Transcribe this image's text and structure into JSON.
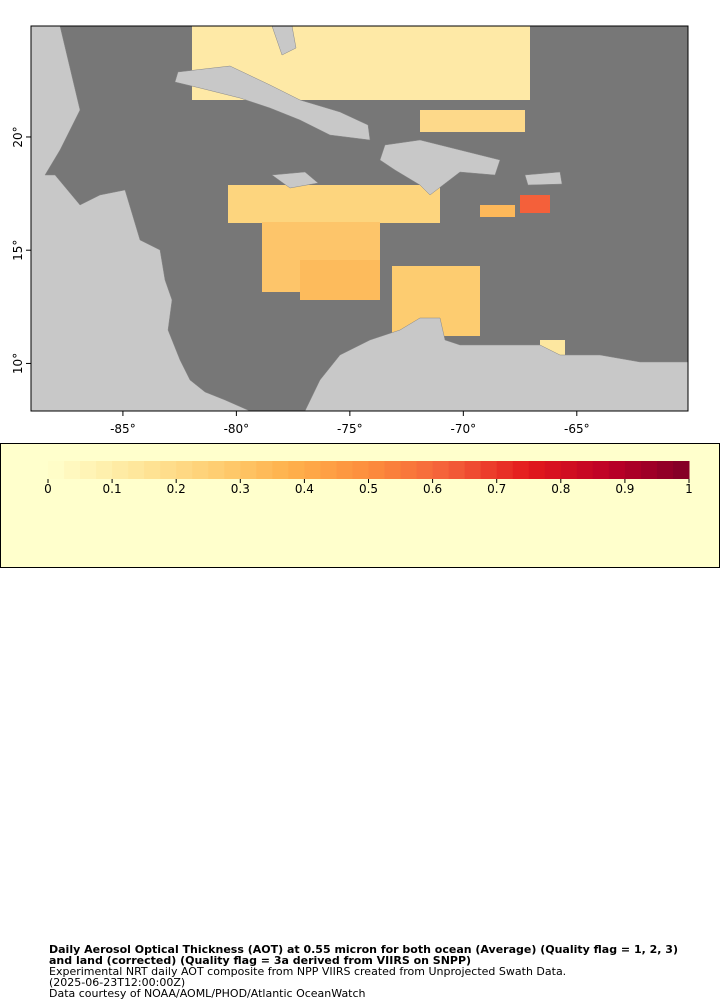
{
  "map": {
    "xlim": [
      -89.05,
      -60.1
    ],
    "ylim": [
      7.9,
      24.9
    ],
    "xticks": [
      {
        "value": -85,
        "label": "-85°"
      },
      {
        "value": -80,
        "label": "-80°"
      },
      {
        "value": -75,
        "label": "-75°"
      },
      {
        "value": -70,
        "label": "-70°"
      },
      {
        "value": -65,
        "label": "-65°"
      }
    ],
    "yticks": [
      {
        "value": 20,
        "label": "20°"
      },
      {
        "value": 15,
        "label": "15°"
      },
      {
        "value": 10,
        "label": "10°"
      }
    ]
  },
  "colorbar": {
    "lim": [
      0,
      1
    ],
    "ticks": [
      0,
      0.1,
      0.2,
      0.3,
      0.4,
      0.5,
      0.6,
      0.7,
      0.8,
      0.9,
      1
    ],
    "colors": [
      "#ffffcc",
      "#fee9a0",
      "#fed176",
      "#feb24c",
      "#fd8d3c",
      "#f4603a",
      "#e31a1c",
      "#bd0026",
      "#800026"
    ]
  },
  "caption": {
    "title": "Daily Aerosol Optical Thickness (AOT) at 0.55 micron for both ocean (Average) (Quality flag = 1, 2, 3) and land (corrected) (Quality flag = 3a derived from VIIRS on SNPP)",
    "lines": [
      "Experimental NRT daily AOT composite from NPP VIIRS created from Unprojected Swath Data.",
      "(2025-06-23T12:00:00Z)",
      "Data courtesy of NOAA/AOML/PHOD/Atlantic OceanWatch"
    ]
  }
}
